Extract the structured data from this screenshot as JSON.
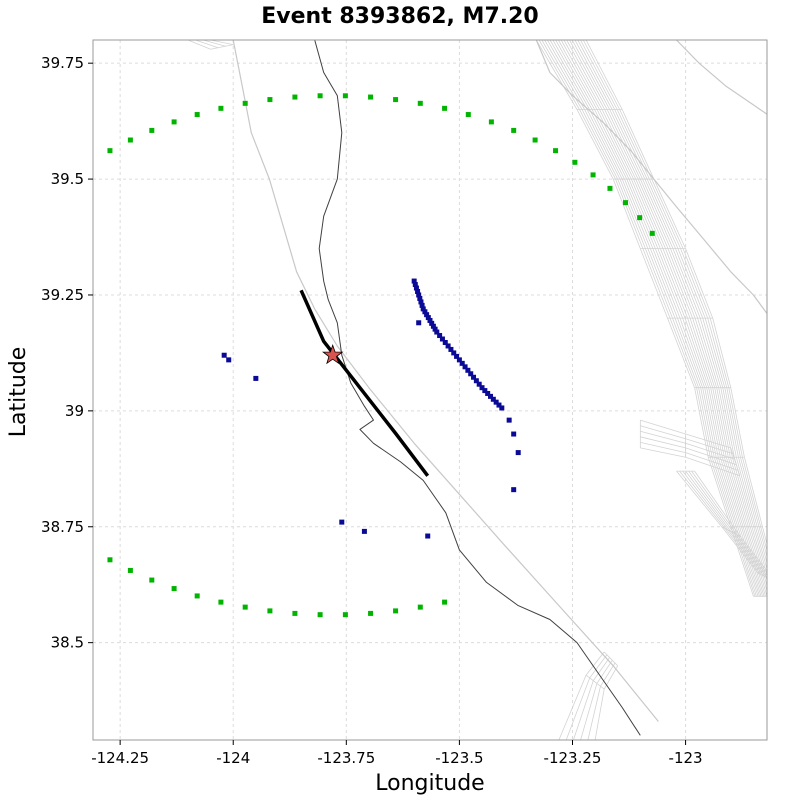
{
  "chart_data": {
    "type": "scatter",
    "title": "Event 8393862, M7.20",
    "xlabel": "Longitude",
    "ylabel": "Latitude",
    "xlim": [
      -124.31,
      -122.82
    ],
    "ylim": [
      38.29,
      39.8
    ],
    "grid": true,
    "xticks": [
      {
        "value": -124.25,
        "label": "-124.25"
      },
      {
        "value": -124.0,
        "label": "-124"
      },
      {
        "value": -123.75,
        "label": "-123.75"
      },
      {
        "value": -123.5,
        "label": "-123.5"
      },
      {
        "value": -123.25,
        "label": "-123.25"
      },
      {
        "value": -123.0,
        "label": "-123"
      }
    ],
    "yticks": [
      {
        "value": 38.5,
        "label": "38.5"
      },
      {
        "value": 38.75,
        "label": "38.75"
      },
      {
        "value": 39.0,
        "label": "39"
      },
      {
        "value": 39.25,
        "label": "39.25"
      },
      {
        "value": 39.5,
        "label": "39.5"
      },
      {
        "value": 39.75,
        "label": "39.75"
      }
    ],
    "epicenter": {
      "lon": -123.78,
      "lat": 39.12,
      "color": "#d9534f"
    },
    "rupture": {
      "color": "#000000",
      "points": [
        [
          -123.85,
          39.26
        ],
        [
          -123.8,
          39.15
        ],
        [
          -123.72,
          39.05
        ],
        [
          -123.64,
          38.95
        ],
        [
          -123.57,
          38.86
        ]
      ]
    },
    "coastline": {
      "color": "#404040",
      "points": [
        [
          -123.82,
          39.8
        ],
        [
          -123.8,
          39.73
        ],
        [
          -123.77,
          39.68
        ],
        [
          -123.76,
          39.6
        ],
        [
          -123.77,
          39.5
        ],
        [
          -123.8,
          39.42
        ],
        [
          -123.81,
          39.35
        ],
        [
          -123.8,
          39.28
        ],
        [
          -123.79,
          39.24
        ],
        [
          -123.77,
          39.19
        ],
        [
          -123.76,
          39.12
        ],
        [
          -123.74,
          39.06
        ],
        [
          -123.71,
          39.01
        ],
        [
          -123.69,
          38.98
        ],
        [
          -123.72,
          38.96
        ],
        [
          -123.69,
          38.93
        ],
        [
          -123.63,
          38.89
        ],
        [
          -123.58,
          38.85
        ],
        [
          -123.53,
          38.78
        ],
        [
          -123.5,
          38.7
        ],
        [
          -123.44,
          38.63
        ],
        [
          -123.37,
          38.58
        ],
        [
          -123.3,
          38.55
        ],
        [
          -123.24,
          38.5
        ],
        [
          -123.19,
          38.43
        ],
        [
          -123.14,
          38.36
        ],
        [
          -123.1,
          38.3
        ]
      ]
    },
    "fault_trace": {
      "color": "#c8c8c8",
      "points": [
        [
          -124.0,
          39.8
        ],
        [
          -123.98,
          39.7
        ],
        [
          -123.96,
          39.6
        ],
        [
          -123.92,
          39.5
        ],
        [
          -123.89,
          39.4
        ],
        [
          -123.86,
          39.3
        ],
        [
          -123.82,
          39.22
        ],
        [
          -123.77,
          39.14
        ],
        [
          -123.7,
          39.05
        ],
        [
          -123.6,
          38.93
        ],
        [
          -123.5,
          38.82
        ],
        [
          -123.4,
          38.71
        ],
        [
          -123.28,
          38.58
        ],
        [
          -123.16,
          38.45
        ],
        [
          -123.06,
          38.33
        ]
      ]
    },
    "inland_fault": {
      "color": "#c8c8c8",
      "points": [
        [
          -123.33,
          39.8
        ],
        [
          -123.3,
          39.73
        ],
        [
          -123.25,
          39.68
        ],
        [
          -123.18,
          39.62
        ],
        [
          -123.12,
          39.56
        ],
        [
          -123.07,
          39.5
        ],
        [
          -123.02,
          39.44
        ],
        [
          -122.96,
          39.37
        ],
        [
          -122.9,
          39.3
        ],
        [
          -122.85,
          39.25
        ],
        [
          -122.82,
          39.21
        ]
      ]
    },
    "inland_fault_short": {
      "color": "#c8c8c8",
      "points": [
        [
          -123.02,
          39.8
        ],
        [
          -122.97,
          39.75
        ],
        [
          -122.91,
          39.7
        ],
        [
          -122.85,
          39.66
        ],
        [
          -122.82,
          39.64
        ]
      ]
    },
    "stations": {
      "color": "#0a0a96",
      "points": [
        [
          -124.02,
          39.12
        ],
        [
          -124.01,
          39.11
        ],
        [
          -123.95,
          39.07
        ],
        [
          -123.76,
          38.76
        ],
        [
          -123.71,
          38.74
        ],
        [
          -123.57,
          38.73
        ],
        [
          -123.59,
          39.19
        ],
        [
          -123.38,
          38.83
        ],
        [
          -123.37,
          38.91
        ],
        [
          -123.38,
          38.95
        ],
        [
          -123.39,
          38.98
        ]
      ]
    },
    "site_arc": {
      "color": "#00b400",
      "center": [
        -123.78,
        39.12
      ],
      "radius_lon": 0.8,
      "radius_lat": 0.56,
      "start_deg": 28,
      "end_deg": 290
    },
    "site_band": {
      "color": "#0a0a96",
      "points": [
        [
          -123.6,
          39.28
        ],
        [
          -123.58,
          39.22
        ],
        [
          -123.55,
          39.17
        ],
        [
          -123.5,
          39.11
        ],
        [
          -123.45,
          39.05
        ],
        [
          -123.4,
          39.0
        ]
      ]
    },
    "mesh_color": "#d3d3d3"
  }
}
